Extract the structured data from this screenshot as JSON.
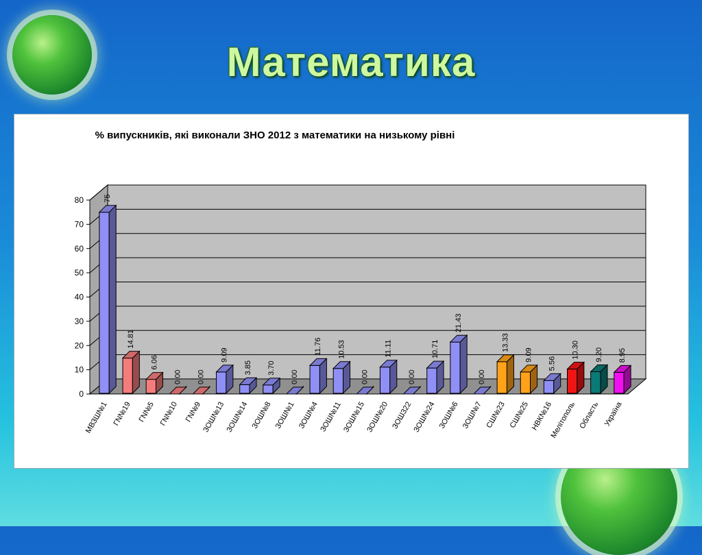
{
  "slide_title": "Математика",
  "colors": {
    "blue_bar": "#8f8ff5",
    "pink_bar": "#f47c7c",
    "orange_bar": "#ffa21a",
    "red_bar": "#f01515",
    "teal_bar": "#0a7a76",
    "magenta_bar": "#f010f0",
    "plot_bg": "#c0c0c0"
  },
  "chart_data": {
    "type": "bar",
    "title": "% випускників, які виконали ЗНО 2012 з математики на низькому рівні",
    "xlabel": "",
    "ylabel": "",
    "ylim": [
      0,
      80
    ],
    "yticks": [
      "0",
      "10",
      "20",
      "30",
      "40",
      "50",
      "60",
      "70",
      "80"
    ],
    "grid": true,
    "legend": "none",
    "categories": [
      "МВЗШ№1",
      "ГN№19",
      "ГN№5",
      "ГN№10",
      "ГN№9",
      "ЗОШ№13",
      "ЗОШ№14",
      "ЗОШ№8",
      "ЗОШ№1",
      "ЗОШ№4",
      "ЗОШ№11",
      "ЗОШ№15",
      "ЗОШ№20",
      "ЗОШ322",
      "ЗОШ№24",
      "ЗОШ№6",
      "ЗОШ№7",
      "СШ№23",
      "СШ№25",
      "НВК№16",
      "Мелітополь",
      "Область",
      "Україна"
    ],
    "values": [
      75,
      14.81,
      6.06,
      0,
      0,
      9.09,
      3.85,
      3.7,
      0,
      11.76,
      10.53,
      0,
      11.11,
      0,
      10.71,
      21.43,
      0,
      13.33,
      9.09,
      5.56,
      10.3,
      9.2,
      8.95
    ],
    "data_labels": [
      "75",
      "14.81",
      "6.06",
      "0.00",
      "0.00",
      "9.09",
      "3.85",
      "3.70",
      "0.00",
      "11.76",
      "10.53",
      "0.00",
      "11.11",
      "0.00",
      "10.71",
      "21.43",
      "0.00",
      "13.33",
      "9.09",
      "5.56",
      "10.30",
      "9.20",
      "8.95"
    ],
    "bar_colors": [
      "blue",
      "pink",
      "pink",
      "pink",
      "pink",
      "blue",
      "blue",
      "blue",
      "blue",
      "blue",
      "blue",
      "blue",
      "blue",
      "blue",
      "blue",
      "blue",
      "blue",
      "orange",
      "orange",
      "blue",
      "red",
      "teal",
      "magenta"
    ]
  }
}
